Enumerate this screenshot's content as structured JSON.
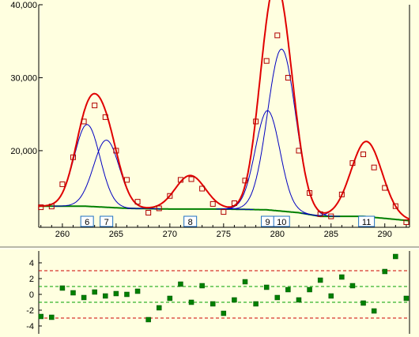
{
  "colors": {
    "background": "#ffffe0",
    "fit_curve": "#e00000",
    "component_curve": "#0000c0",
    "baseline": "#008000",
    "data_point": "#b00000",
    "residual_point": "#008000",
    "peak_label_border": "#1e6fc0",
    "limit_line_outer": "#cc0000",
    "limit_line_inner": "#00a000"
  },
  "chart_data": [
    {
      "type": "line",
      "panel": "peak-fit",
      "title": "",
      "xlabel": "",
      "ylabel": "",
      "xlim": [
        257.8,
        292.3
      ],
      "ylim": [
        9500,
        40000
      ],
      "x_ticks": [
        260,
        265,
        270,
        275,
        280,
        285,
        290
      ],
      "x_tick_labels": [
        "260",
        "265",
        "270",
        "275",
        "280",
        "285",
        "290"
      ],
      "y_ticks": [
        20000,
        30000,
        40000
      ],
      "y_tick_labels": [
        "20,000",
        "30,000",
        "40,000"
      ],
      "peak_labels": [
        {
          "label": "6",
          "x": 262.3
        },
        {
          "label": "7",
          "x": 264.1
        },
        {
          "label": "8",
          "x": 271.9
        },
        {
          "label": "9",
          "x": 279.1
        },
        {
          "label": "10",
          "x": 280.4
        },
        {
          "label": "11",
          "x": 288.3
        }
      ],
      "components": [
        {
          "center": 262.3,
          "height": 11200,
          "width": 1.2
        },
        {
          "center": 264.1,
          "height": 9200,
          "width": 1.2
        },
        {
          "center": 271.9,
          "height": 4600,
          "width": 1.4
        },
        {
          "center": 279.1,
          "height": 13600,
          "width": 1.15
        },
        {
          "center": 280.4,
          "height": 22200,
          "width": 1.3
        },
        {
          "center": 288.3,
          "height": 10300,
          "width": 1.45
        }
      ],
      "baseline": {
        "x": [
          257.8,
          262,
          266,
          270,
          275,
          279,
          282,
          284,
          288,
          292.3
        ],
        "y": [
          12400,
          12400,
          12100,
          12000,
          12000,
          11900,
          11500,
          11000,
          11000,
          10400
        ]
      },
      "data_points": {
        "x": [
          258,
          259,
          260,
          261,
          262,
          263,
          264,
          265,
          266,
          267,
          268,
          269,
          270,
          271,
          272,
          273,
          274,
          275,
          276,
          277,
          278,
          279,
          280,
          281,
          282,
          283,
          284,
          285,
          286,
          287,
          288,
          289,
          290,
          291,
          292
        ],
        "y": [
          12250,
          12350,
          15400,
          19100,
          24000,
          26200,
          24600,
          20000,
          16000,
          13000,
          11500,
          12100,
          13800,
          16000,
          16100,
          14800,
          12700,
          11600,
          12800,
          15900,
          24000,
          32300,
          35800,
          30000,
          20000,
          14200,
          11300,
          11000,
          14000,
          18300,
          19500,
          17700,
          14900,
          12400,
          10200
        ]
      }
    },
    {
      "type": "scatter",
      "panel": "residuals",
      "title": "",
      "xlabel": "",
      "ylabel": "",
      "xlim": [
        257.8,
        292.3
      ],
      "ylim": [
        -5,
        5.5
      ],
      "y_ticks": [
        -4,
        -2,
        0,
        2,
        4
      ],
      "y_tick_labels": [
        "-4",
        "-2",
        "0",
        "2",
        "4"
      ],
      "limit_lines": [
        3,
        1,
        -1,
        -3
      ],
      "x": [
        258,
        259,
        260,
        261,
        262,
        263,
        264,
        265,
        266,
        267,
        268,
        269,
        270,
        271,
        272,
        273,
        274,
        275,
        276,
        277,
        278,
        279,
        280,
        281,
        282,
        283,
        284,
        285,
        286,
        287,
        288,
        289,
        290,
        291,
        292
      ],
      "y": [
        -2.8,
        -2.9,
        0.8,
        0.2,
        -0.4,
        0.3,
        -0.2,
        0.1,
        0.0,
        0.4,
        -3.2,
        -1.7,
        -0.5,
        1.3,
        -1.0,
        1.1,
        -1.2,
        -2.4,
        -0.7,
        1.6,
        -1.2,
        0.9,
        -0.4,
        0.6,
        -0.7,
        0.6,
        1.8,
        -0.2,
        2.2,
        1.1,
        -1.1,
        -2.1,
        2.9,
        4.8,
        -0.5
      ]
    }
  ]
}
